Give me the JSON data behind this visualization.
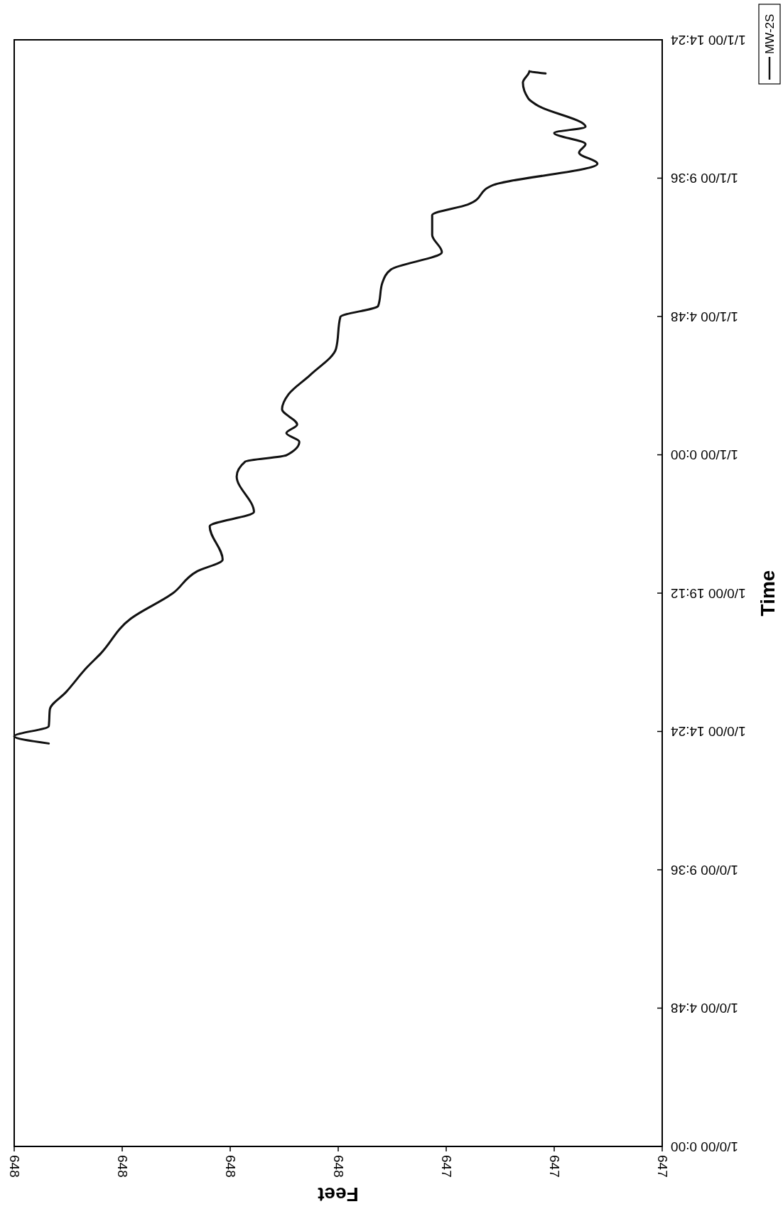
{
  "chart_data": {
    "type": "line",
    "orientation": "horizontal",
    "xlabel": "Feet",
    "ylabel": "Time",
    "xlim": [
      647.8,
      647.2
    ],
    "xticks": [
      {
        "value": 647.8,
        "label": "648"
      },
      {
        "value": 647.7,
        "label": "648"
      },
      {
        "value": 647.6,
        "label": "648"
      },
      {
        "value": 647.5,
        "label": "648"
      },
      {
        "value": 647.4,
        "label": "647"
      },
      {
        "value": 647.3,
        "label": "647"
      },
      {
        "value": 647.2,
        "label": "647"
      }
    ],
    "ylim": [
      "1899-12-31T00:00",
      "1900-01-01T14:24"
    ],
    "yticks": [
      {
        "value": "1899-12-31T00:00",
        "label": "1/0/00 0:00"
      },
      {
        "value": "1899-12-31T04:48",
        "label": "1/0/00 4:48"
      },
      {
        "value": "1899-12-31T09:36",
        "label": "1/0/00 9:36"
      },
      {
        "value": "1899-12-31T14:24",
        "label": "1/0/00 14:24"
      },
      {
        "value": "1899-12-31T19:12",
        "label": "1/0/00 19:12"
      },
      {
        "value": "1900-01-01T00:00",
        "label": "1/1/00 0:00"
      },
      {
        "value": "1900-01-01T04:48",
        "label": "1/1/00 4:48"
      },
      {
        "value": "1900-01-01T09:36",
        "label": "1/1/00 9:36"
      },
      {
        "value": "1900-01-01T14:24",
        "label": "1/1/00 14:24"
      }
    ],
    "legend": "top right",
    "grid": false,
    "marker": "none",
    "line_style": "solid",
    "series": [
      {
        "name": "MW-2S",
        "color": "#111111",
        "x": [
          "1899-12-31T13:59",
          "1899-12-31T14:14",
          "1899-12-31T14:35",
          "1899-12-31T15:10",
          "1899-12-31T15:46",
          "1899-12-31T16:39",
          "1899-12-31T17:06",
          "1899-12-31T18:19",
          "1899-12-31T19:12",
          "1899-12-31T19:57",
          "1899-12-31T20:22",
          "1899-12-31T21:31",
          "1899-12-31T22:01",
          "1899-12-31T23:15",
          "1899-12-31T23:46",
          "1899-12-31T23:59",
          "1900-01-01T00:27",
          "1900-01-01T00:45",
          "1900-01-01T01:03",
          "1900-01-01T01:35",
          "1900-01-01T02:06",
          "1900-01-01T02:46",
          "1900-01-01T03:41",
          "1900-01-01T04:47",
          "1900-01-01T05:10",
          "1900-01-01T05:59",
          "1900-01-01T06:26",
          "1900-01-01T07:02",
          "1900-01-01T07:38",
          "1900-01-01T08:19",
          "1900-01-01T08:41",
          "1900-01-01T09:22",
          "1900-01-01T10:06",
          "1900-01-01T10:29",
          "1900-01-01T10:47",
          "1900-01-01T11:10",
          "1900-01-01T11:23",
          "1900-01-01T12:08",
          "1900-01-01T12:22",
          "1900-01-01T12:55",
          "1900-01-01T13:19",
          "1900-01-01T13:14"
        ],
        "values": [
          647.768,
          647.8,
          647.768,
          647.767,
          647.752,
          647.732,
          647.72,
          647.692,
          647.653,
          647.631,
          647.607,
          647.619,
          647.578,
          647.594,
          647.586,
          647.548,
          647.536,
          647.548,
          647.538,
          647.552,
          647.546,
          647.526,
          647.502,
          647.498,
          647.463,
          647.459,
          647.451,
          647.404,
          647.413,
          647.413,
          647.38,
          647.356,
          647.26,
          647.277,
          647.271,
          647.3,
          647.271,
          647.316,
          647.324,
          647.329,
          647.323,
          647.308
        ]
      }
    ]
  }
}
